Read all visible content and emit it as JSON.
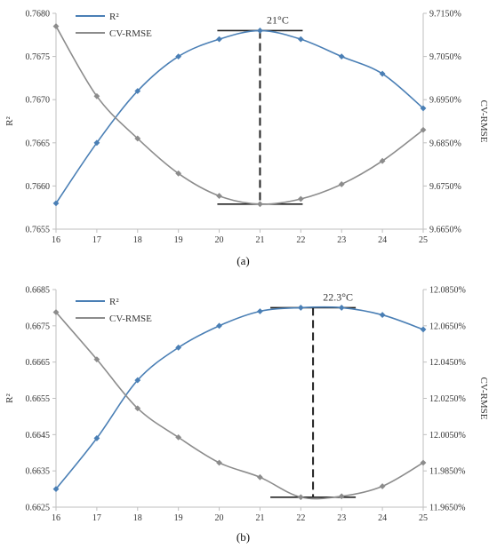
{
  "chart_data": [
    {
      "type": "line",
      "panel_label": "(a)",
      "categories": [
        "16",
        "17",
        "18",
        "19",
        "20",
        "21",
        "22",
        "23",
        "24",
        "25"
      ],
      "ylabel": "R²",
      "y2label": "CV-RMSE",
      "ylim": [
        0.7655,
        0.768
      ],
      "yticks": [
        "0.7655",
        "0.7660",
        "0.7665",
        "0.7670",
        "0.7675",
        "0.7680"
      ],
      "y2lim": [
        9.665,
        9.715
      ],
      "y2ticks": [
        "9.6650%",
        "9.6750%",
        "9.6850%",
        "9.6950%",
        "9.7050%",
        "9.7150%"
      ],
      "annotation": "21°C",
      "annotation_x": 21,
      "series": [
        {
          "name": "R²",
          "axis": "left",
          "color": "#4a7fb5",
          "values": [
            0.7658,
            0.7665,
            0.7671,
            0.7675,
            0.7677,
            0.7678,
            0.7677,
            0.7675,
            0.7673,
            0.7669
          ]
        },
        {
          "name": "CV-RMSE",
          "axis": "right",
          "color": "#8c8c8c",
          "values": [
            9.712,
            9.6958,
            9.686,
            9.6779,
            9.6727,
            9.6708,
            9.672,
            9.6754,
            9.6808,
            9.688
          ]
        }
      ]
    },
    {
      "type": "line",
      "panel_label": "(b)",
      "categories": [
        "16",
        "17",
        "18",
        "19",
        "20",
        "21",
        "22",
        "23",
        "24",
        "25"
      ],
      "ylabel": "R²",
      "y2label": "CV-RMSE",
      "ylim": [
        0.6625,
        0.6685
      ],
      "yticks": [
        "0.6625",
        "0.6635",
        "0.6645",
        "0.6655",
        "0.6665",
        "0.6675",
        "0.6685"
      ],
      "y2lim": [
        11.965,
        12.085
      ],
      "y2ticks": [
        "11.9650%",
        "11.9850%",
        "12.0050%",
        "12.0250%",
        "12.0450%",
        "12.0650%",
        "12.0850%"
      ],
      "annotation": "22.3°C",
      "annotation_x": 22.3,
      "series": [
        {
          "name": "R²",
          "axis": "left",
          "color": "#4a7fb5",
          "values": [
            0.663,
            0.6644,
            0.666,
            0.6669,
            0.6675,
            0.6679,
            0.668,
            0.668,
            0.6678,
            0.6674
          ]
        },
        {
          "name": "CV-RMSE",
          "axis": "right",
          "color": "#8c8c8c",
          "values": [
            12.0725,
            12.0465,
            12.0195,
            12.0035,
            11.9895,
            11.9815,
            11.9705,
            11.971,
            11.9765,
            11.9895
          ]
        }
      ]
    }
  ],
  "colors": {
    "r2": "#4a7fb5",
    "cvrmse": "#8c8c8c",
    "axis": "#bfbfbf",
    "annotation": "#222222"
  }
}
